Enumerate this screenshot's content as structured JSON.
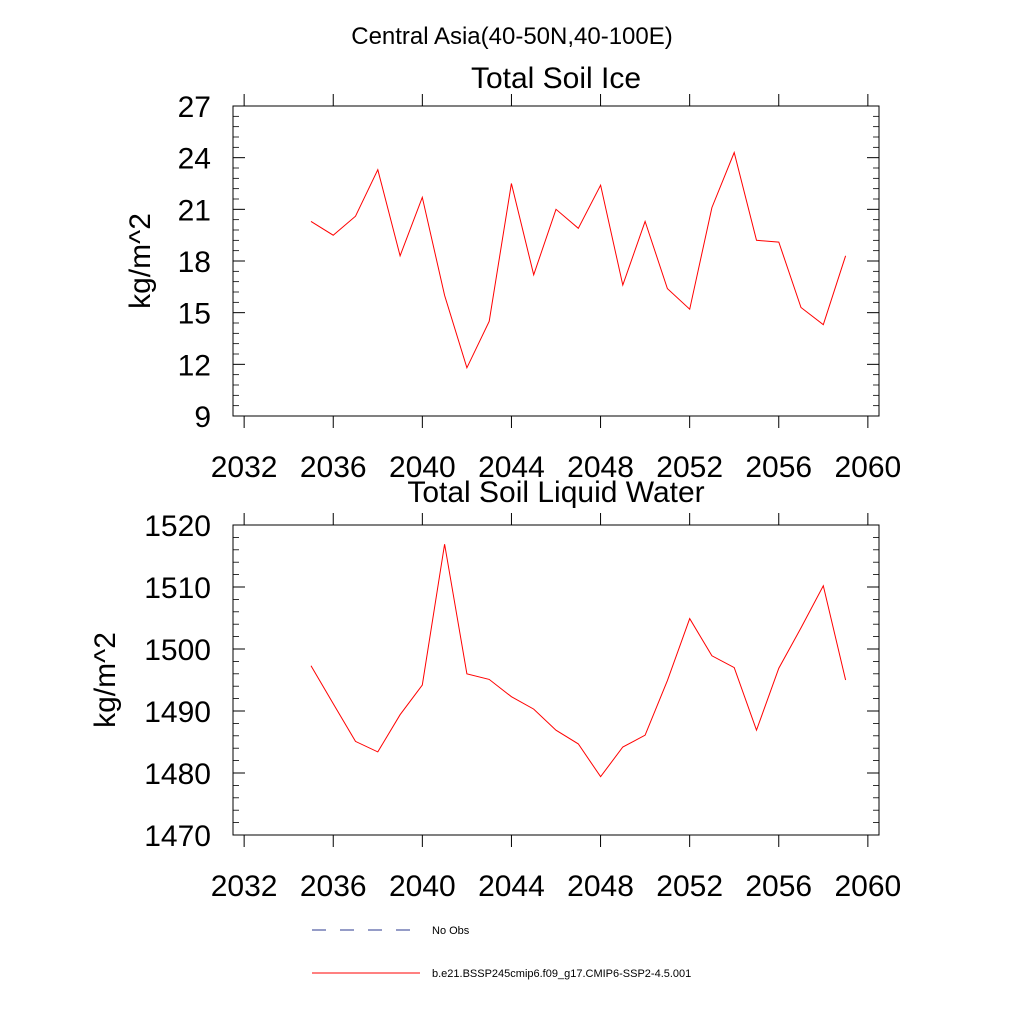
{
  "figure": {
    "suptitle": "Central Asia(40-50N,40-100E)"
  },
  "colors": {
    "model_line": "#ff0000",
    "obs_line": "#2b3a8f",
    "axes": "#000000"
  },
  "legend": {
    "placement": "bottom-center",
    "obs_label": "No Obs",
    "model_label": "b.e21.BSSP245cmip6.f09_g17.CMIP6-SSP2-4.5.001"
  },
  "chart_data": [
    {
      "type": "line",
      "title": "Total Soil Ice",
      "xlabel": "",
      "ylabel": "kg/m^2",
      "xlim": [
        2031.5,
        2060.5
      ],
      "ylim": [
        9,
        27
      ],
      "xticks": [
        2032,
        2036,
        2040,
        2044,
        2048,
        2052,
        2056,
        2060
      ],
      "xtick_labels": [
        "2032",
        "2036",
        "2040",
        "2044",
        "2048",
        "2052",
        "2056",
        "2060"
      ],
      "yticks": [
        9,
        12,
        15,
        18,
        21,
        24,
        27
      ],
      "ytick_labels": [
        "9",
        "12",
        "15",
        "18",
        "21",
        "24",
        "27"
      ],
      "grid": false,
      "series": [
        {
          "name": "b.e21.BSSP245cmip6.f09_g17.CMIP6-SSP2-4.5.001",
          "x": [
            2035,
            2036,
            2037,
            2038,
            2039,
            2040,
            2041,
            2042,
            2043,
            2044,
            2045,
            2046,
            2047,
            2048,
            2049,
            2050,
            2051,
            2052,
            2053,
            2054,
            2055,
            2056,
            2057,
            2058,
            2059
          ],
          "values": [
            20.3,
            19.5,
            20.6,
            23.3,
            18.3,
            21.7,
            16.0,
            11.8,
            14.5,
            22.5,
            17.2,
            21.0,
            19.9,
            22.4,
            16.6,
            20.3,
            16.4,
            15.2,
            21.1,
            24.3,
            19.2,
            19.1,
            15.3,
            14.3,
            18.3
          ]
        }
      ]
    },
    {
      "type": "line",
      "title": "Total Soil Liquid Water",
      "xlabel": "",
      "ylabel": "kg/m^2",
      "xlim": [
        2031.5,
        2060.5
      ],
      "ylim": [
        1470,
        1520
      ],
      "xticks": [
        2032,
        2036,
        2040,
        2044,
        2048,
        2052,
        2056,
        2060
      ],
      "xtick_labels": [
        "2032",
        "2036",
        "2040",
        "2044",
        "2048",
        "2052",
        "2056",
        "2060"
      ],
      "yticks": [
        1470,
        1480,
        1490,
        1500,
        1510,
        1520
      ],
      "ytick_labels": [
        "1470",
        "1480",
        "1490",
        "1500",
        "1510",
        "1520"
      ],
      "grid": false,
      "series": [
        {
          "name": "b.e21.BSSP245cmip6.f09_g17.CMIP6-SSP2-4.5.001",
          "x": [
            2035,
            2036,
            2037,
            2038,
            2039,
            2040,
            2041,
            2042,
            2043,
            2044,
            2045,
            2046,
            2047,
            2048,
            2049,
            2050,
            2051,
            2052,
            2053,
            2054,
            2055,
            2056,
            2057,
            2058,
            2059
          ],
          "values": [
            1497.3,
            1491.2,
            1485.1,
            1483.4,
            1489.4,
            1494.2,
            1516.9,
            1496.0,
            1495.1,
            1492.3,
            1490.3,
            1486.9,
            1484.7,
            1479.4,
            1484.2,
            1486.1,
            1494.9,
            1504.9,
            1498.9,
            1497.0,
            1486.9,
            1496.9,
            1503.4,
            1510.2,
            1495.0
          ]
        }
      ]
    }
  ]
}
